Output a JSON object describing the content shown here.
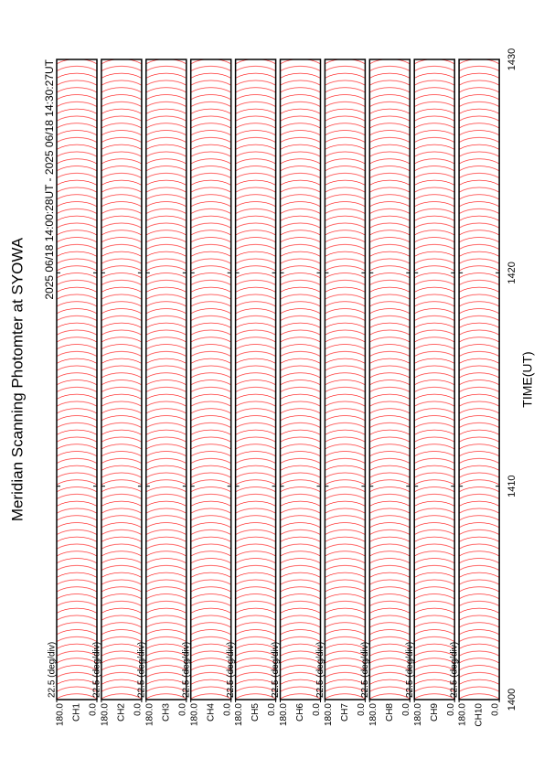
{
  "chart_data": {
    "type": "stacked-scans",
    "title": "Meridian Scanning Photomter at SYOWA",
    "subtitle": "2025 06/18 14:00:28UT - 2025 06/18 14:30:27UT",
    "xlabel": "TIME(UT)",
    "xlim": [
      1400,
      1430
    ],
    "xticks": [
      1400,
      1410,
      1420,
      1430
    ],
    "color": "#ff0000",
    "panels": [
      {
        "scale": "22.5 (deg/div)",
        "channel": "CH1",
        "ylim": [
          0,
          180
        ],
        "yticks": [
          {
            "value": 0,
            "label": "0.0"
          },
          {
            "value": 180,
            "label": "180.0"
          }
        ]
      },
      {
        "scale": "22.5 (deg/div)",
        "channel": "CH2",
        "ylim": [
          0,
          180
        ],
        "yticks": [
          {
            "value": 0,
            "label": "0.0"
          },
          {
            "value": 180,
            "label": "180.0"
          }
        ]
      },
      {
        "scale": "22.5 (deg/div)",
        "channel": "CH3",
        "ylim": [
          0,
          180
        ],
        "yticks": [
          {
            "value": 0,
            "label": "0.0"
          },
          {
            "value": 180,
            "label": "180.0"
          }
        ]
      },
      {
        "scale": "22.5 (deg/div)",
        "channel": "CH4",
        "ylim": [
          0,
          180
        ],
        "yticks": [
          {
            "value": 0,
            "label": "0.0"
          },
          {
            "value": 180,
            "label": "180.0"
          }
        ]
      },
      {
        "scale": "22.5 (deg/div)",
        "channel": "CH5",
        "ylim": [
          0,
          180
        ],
        "yticks": [
          {
            "value": 0,
            "label": "0.0"
          },
          {
            "value": 180,
            "label": "180.0"
          }
        ]
      },
      {
        "scale": "22.5 (deg/div)",
        "channel": "CH6",
        "ylim": [
          0,
          180
        ],
        "yticks": [
          {
            "value": 0,
            "label": "0.0"
          },
          {
            "value": 180,
            "label": "180.0"
          }
        ]
      },
      {
        "scale": "22.5 (deg/div)",
        "channel": "CH7",
        "ylim": [
          0,
          180
        ],
        "yticks": [
          {
            "value": 0,
            "label": "0.0"
          },
          {
            "value": 180,
            "label": "180.0"
          }
        ]
      },
      {
        "scale": "22.5 (deg/div)",
        "channel": "CH8",
        "ylim": [
          0,
          180
        ],
        "yticks": [
          {
            "value": 0,
            "label": "0.0"
          },
          {
            "value": 180,
            "label": "180.0"
          }
        ]
      },
      {
        "scale": "22.5 (deg/div)",
        "channel": "CH9",
        "ylim": [
          0,
          180
        ],
        "yticks": [
          {
            "value": 0,
            "label": "0.0"
          },
          {
            "value": 180,
            "label": "180.0"
          }
        ]
      },
      {
        "scale": "22.5 (deg/div)",
        "channel": "CH10",
        "ylim": [
          0,
          180
        ],
        "yticks": [
          {
            "value": 0,
            "label": "0.0"
          },
          {
            "value": 180,
            "label": "180.0"
          }
        ]
      }
    ]
  }
}
